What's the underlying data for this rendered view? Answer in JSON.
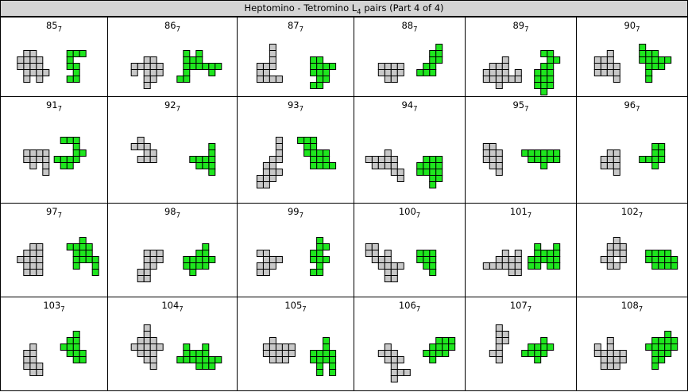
{
  "header": {
    "title_prefix": "Heptomino - Tetromino L",
    "title_subscript": "4",
    "title_suffix": " pairs (Part 4 of 4)"
  },
  "colors": {
    "heptomino": "#c8c8c8",
    "tetromino_fill": "#1ee61e",
    "outline": "#000000",
    "header_bg": "#d4d4d4"
  },
  "rows": [
    {
      "cells": [
        {
          "n": "85",
          "sub": "7"
        },
        {
          "n": "86",
          "sub": "7"
        },
        {
          "n": "87",
          "sub": "7"
        },
        {
          "n": "88",
          "sub": "7"
        },
        {
          "n": "89",
          "sub": "7"
        },
        {
          "n": "90",
          "sub": "7"
        }
      ]
    },
    {
      "cells": [
        {
          "n": "91",
          "sub": "7"
        },
        {
          "n": "92",
          "sub": "7"
        },
        {
          "n": "93",
          "sub": "7"
        },
        {
          "n": "94",
          "sub": "7"
        },
        {
          "n": "95",
          "sub": "7"
        },
        {
          "n": "96",
          "sub": "7"
        }
      ]
    },
    {
      "cells": [
        {
          "n": "97",
          "sub": "7"
        },
        {
          "n": "98",
          "sub": "7"
        },
        {
          "n": "99",
          "sub": "7"
        },
        {
          "n": "100",
          "sub": "7"
        },
        {
          "n": "101",
          "sub": "7"
        },
        {
          "n": "102",
          "sub": "7"
        }
      ]
    },
    {
      "cells": [
        {
          "n": "103",
          "sub": "7"
        },
        {
          "n": "104",
          "sub": "7"
        },
        {
          "n": "105",
          "sub": "7"
        },
        {
          "n": "106",
          "sub": "7"
        },
        {
          "n": "107",
          "sub": "7"
        },
        {
          "n": "108",
          "sub": "7"
        }
      ]
    }
  ]
}
